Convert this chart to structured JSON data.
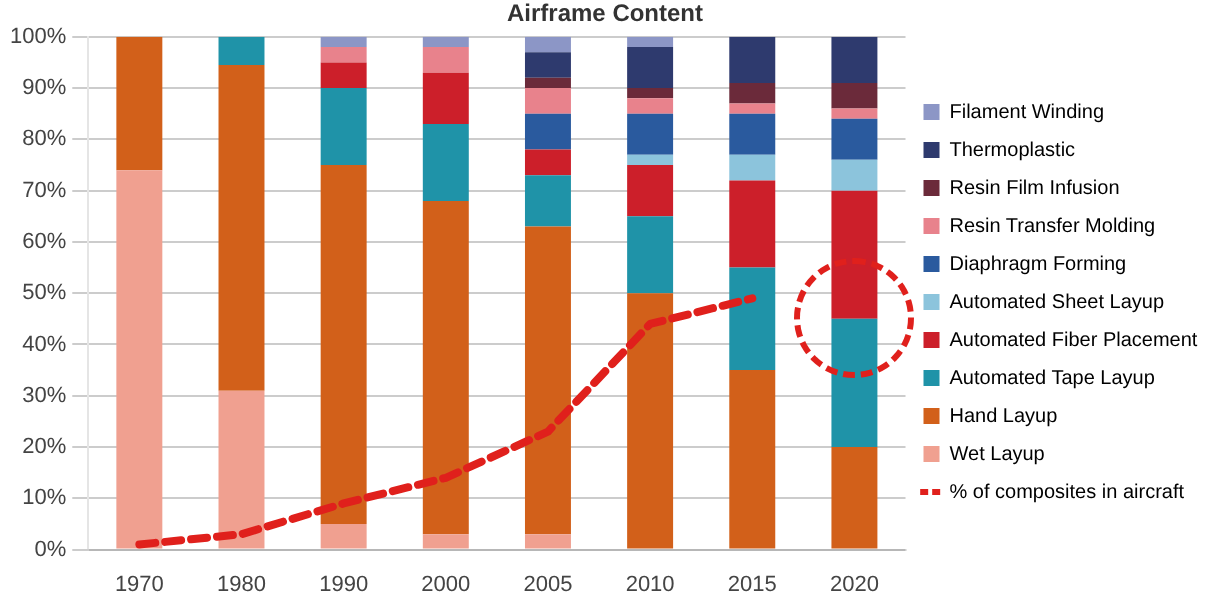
{
  "chart_data": {
    "type": "bar",
    "title": "Airframe Content",
    "stacked": true,
    "categories": [
      "1970",
      "1980",
      "1990",
      "2000",
      "2005",
      "2010",
      "2015",
      "2020"
    ],
    "ylim": [
      0,
      100
    ],
    "yticks": [
      {
        "value": 0,
        "label": "0%"
      },
      {
        "value": 10,
        "label": "10%"
      },
      {
        "value": 20,
        "label": "20%"
      },
      {
        "value": 30,
        "label": "30%"
      },
      {
        "value": 40,
        "label": "40%"
      },
      {
        "value": 50,
        "label": "50%"
      },
      {
        "value": 60,
        "label": "60%"
      },
      {
        "value": 70,
        "label": "70%"
      },
      {
        "value": 80,
        "label": "80%"
      },
      {
        "value": 90,
        "label": "90%"
      },
      {
        "value": 100,
        "label": "100%"
      }
    ],
    "grid": "y",
    "legend": "right",
    "series": [
      {
        "name": "Wet Layup",
        "color": "#f0a090",
        "values": [
          74,
          31,
          5,
          3,
          3,
          0,
          0,
          0
        ]
      },
      {
        "name": "Hand Layup",
        "color": "#d2601a",
        "values": [
          26,
          63.5,
          70,
          65,
          60,
          50,
          35,
          20
        ]
      },
      {
        "name": "Automated Tape Layup",
        "color": "#1f93a8",
        "values": [
          0,
          5.5,
          15,
          15,
          10,
          15,
          20,
          25
        ]
      },
      {
        "name": "Automated Fiber Placement",
        "color": "#cc1f2a",
        "values": [
          0,
          0,
          5,
          10,
          5,
          10,
          17,
          25
        ]
      },
      {
        "name": "Automated Sheet Layup",
        "color": "#8cc4dc",
        "values": [
          0,
          0,
          0,
          0,
          0,
          2,
          5,
          6
        ]
      },
      {
        "name": "Diaphragm Forming",
        "color": "#2a5a9e",
        "values": [
          0,
          0,
          0,
          0,
          7,
          8,
          8,
          8
        ]
      },
      {
        "name": "Resin Transfer Molding",
        "color": "#e8828c",
        "values": [
          0,
          0,
          3,
          5,
          5,
          3,
          2,
          2
        ]
      },
      {
        "name": "Resin Film Infusion",
        "color": "#6b2a3a",
        "values": [
          0,
          0,
          0,
          0,
          2,
          2,
          4,
          5
        ]
      },
      {
        "name": "Thermoplastic",
        "color": "#2e3a6e",
        "values": [
          0,
          0,
          0,
          0,
          5,
          8,
          9,
          9
        ]
      },
      {
        "name": "Filament Winding",
        "color": "#8c96c6",
        "values": [
          0,
          0,
          2,
          2,
          3,
          2,
          0,
          0
        ]
      },
      {
        "name": "% of composites in aircraft",
        "type": "line",
        "line_style": "dashed",
        "marker": "none",
        "color": "#e0201c",
        "values": [
          1,
          3,
          9,
          14,
          23,
          44,
          49,
          null
        ]
      }
    ]
  }
}
